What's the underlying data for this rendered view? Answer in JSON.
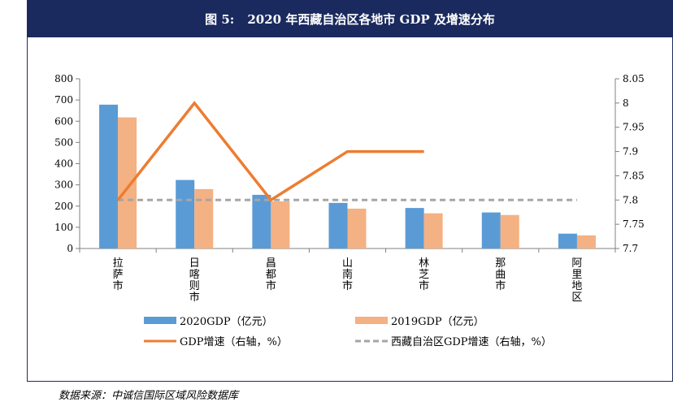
{
  "figure": {
    "number": "图 5:",
    "title": "2020 年西藏自治区各地市 GDP 及增速分布"
  },
  "source": "数据来源：中诚信国际区域风险数据库",
  "colors": {
    "header_bg": "#1a2a5e",
    "gdp2020": "#5b9bd5",
    "gdp2019": "#f4b183",
    "growth": "#ed7d31",
    "region_growth": "#a6a6a6"
  },
  "chart_data": {
    "type": "bar",
    "categories": [
      "拉萨市",
      "日喀则市",
      "昌都市",
      "山南市",
      "林芝市",
      "那曲市",
      "阿里地区"
    ],
    "category_labels": [
      [
        "拉",
        "萨",
        "市"
      ],
      [
        "日",
        "喀",
        "则",
        "市"
      ],
      [
        "昌",
        "都",
        "市"
      ],
      [
        "山",
        "南",
        "市"
      ],
      [
        "林",
        "芝",
        "市"
      ],
      [
        "那",
        "曲",
        "市"
      ],
      [
        "阿",
        "里",
        "地",
        "区"
      ]
    ],
    "series": [
      {
        "name": "2020GDP（亿元）",
        "kind": "bar",
        "axis": "left",
        "values": [
          678,
          323,
          253,
          215,
          191,
          170,
          70
        ]
      },
      {
        "name": "2019GDP（亿元）",
        "kind": "bar",
        "axis": "left",
        "values": [
          618,
          280,
          222,
          188,
          166,
          158,
          62
        ]
      },
      {
        "name": "GDP增速（右轴，%）",
        "kind": "line",
        "axis": "right",
        "values": [
          7.8,
          8.0,
          7.8,
          7.9,
          7.9,
          null,
          null
        ]
      },
      {
        "name": "西藏自治区GDP增速（右轴，%）",
        "kind": "line-dashed",
        "axis": "right",
        "values": [
          7.8,
          7.8,
          7.8,
          7.8,
          7.8,
          7.8,
          7.8
        ]
      }
    ],
    "y_left": {
      "min": 0,
      "max": 800,
      "ticks": [
        "0",
        "100",
        "200",
        "300",
        "400",
        "500",
        "600",
        "700",
        "800"
      ]
    },
    "y_right": {
      "min": 7.7,
      "max": 8.05,
      "ticks": [
        "7.7",
        "7.75",
        "7.8",
        "7.85",
        "7.9",
        "7.95",
        "8",
        "8.05"
      ]
    },
    "grid": false,
    "legend_position": "bottom"
  }
}
